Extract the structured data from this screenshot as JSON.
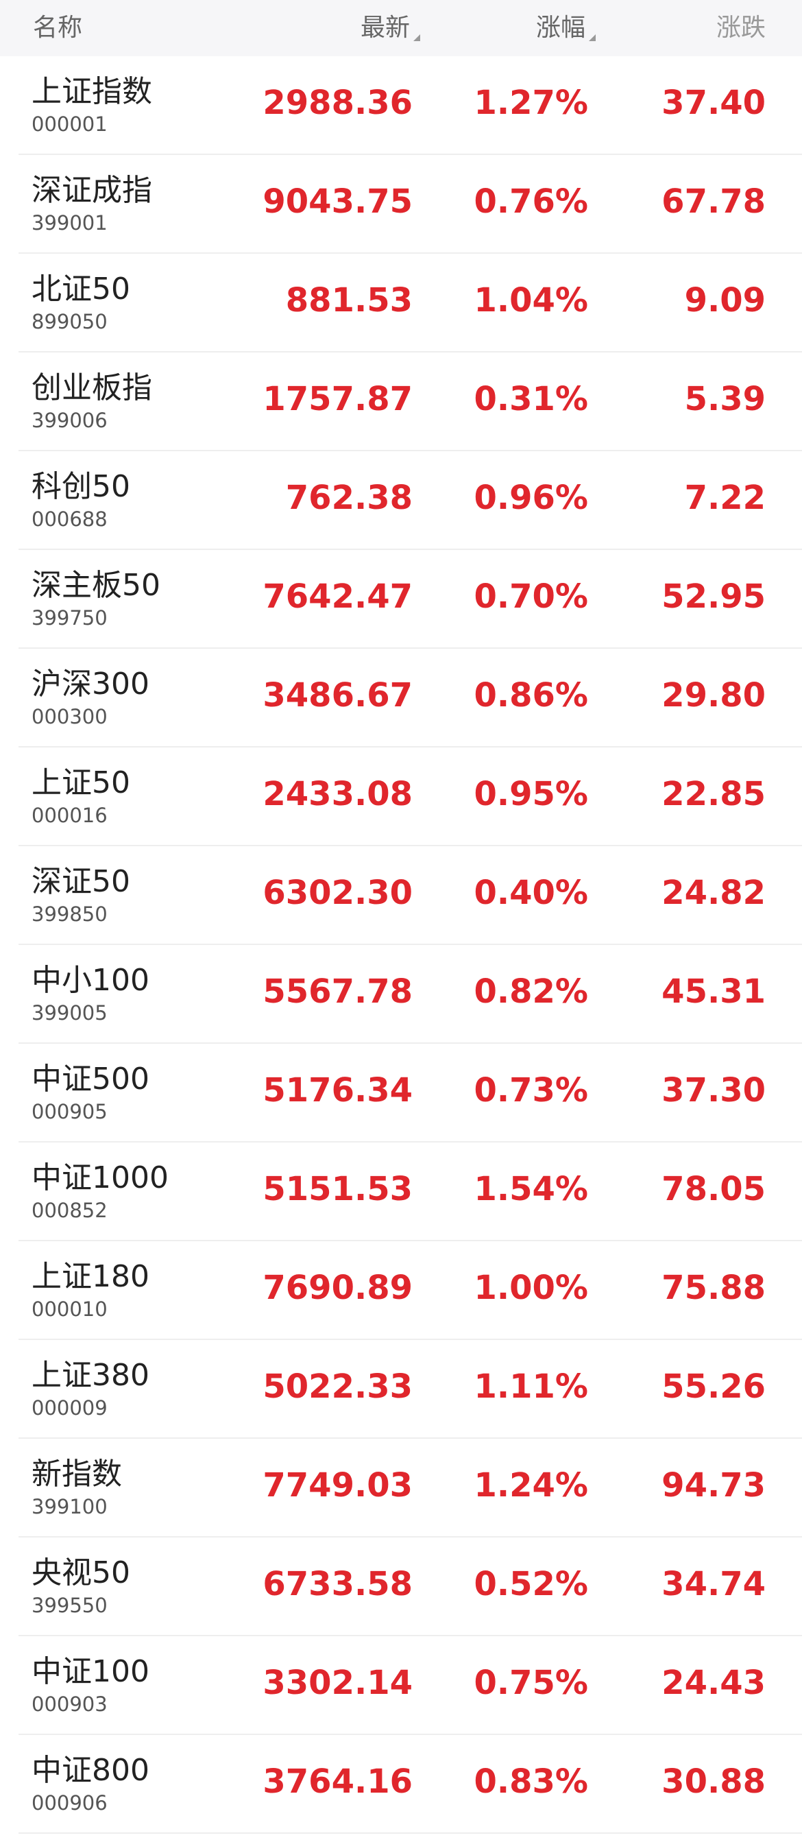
{
  "header": {
    "name": "名称",
    "latest": "最新",
    "change_pct": "涨幅",
    "change": "涨跌"
  },
  "table": {
    "rows": [
      [
        "上证指数",
        "000001",
        "2988.36",
        "1.27%",
        "37.40"
      ],
      [
        "深证成指",
        "399001",
        "9043.75",
        "0.76%",
        "67.78"
      ],
      [
        "北证50",
        "899050",
        "881.53",
        "1.04%",
        "9.09"
      ],
      [
        "创业板指",
        "399006",
        "1757.87",
        "0.31%",
        "5.39"
      ],
      [
        "科创50",
        "000688",
        "762.38",
        "0.96%",
        "7.22"
      ],
      [
        "深主板50",
        "399750",
        "7642.47",
        "0.70%",
        "52.95"
      ],
      [
        "沪深300",
        "000300",
        "3486.67",
        "0.86%",
        "29.80"
      ],
      [
        "上证50",
        "000016",
        "2433.08",
        "0.95%",
        "22.85"
      ],
      [
        "深证50",
        "399850",
        "6302.30",
        "0.40%",
        "24.82"
      ],
      [
        "中小100",
        "399005",
        "5567.78",
        "0.82%",
        "45.31"
      ],
      [
        "中证500",
        "000905",
        "5176.34",
        "0.73%",
        "37.30"
      ],
      [
        "中证1000",
        "000852",
        "5151.53",
        "1.54%",
        "78.05"
      ],
      [
        "上证180",
        "000010",
        "7690.89",
        "1.00%",
        "75.88"
      ],
      [
        "上证380",
        "000009",
        "5022.33",
        "1.11%",
        "55.26"
      ],
      [
        "新指数",
        "399100",
        "7749.03",
        "1.24%",
        "94.73"
      ],
      [
        "央视50",
        "399550",
        "6733.58",
        "0.52%",
        "34.74"
      ],
      [
        "中证100",
        "000903",
        "3302.14",
        "0.75%",
        "24.43"
      ],
      [
        "中证800",
        "000906",
        "3764.16",
        "0.83%",
        "30.88"
      ]
    ]
  }
}
